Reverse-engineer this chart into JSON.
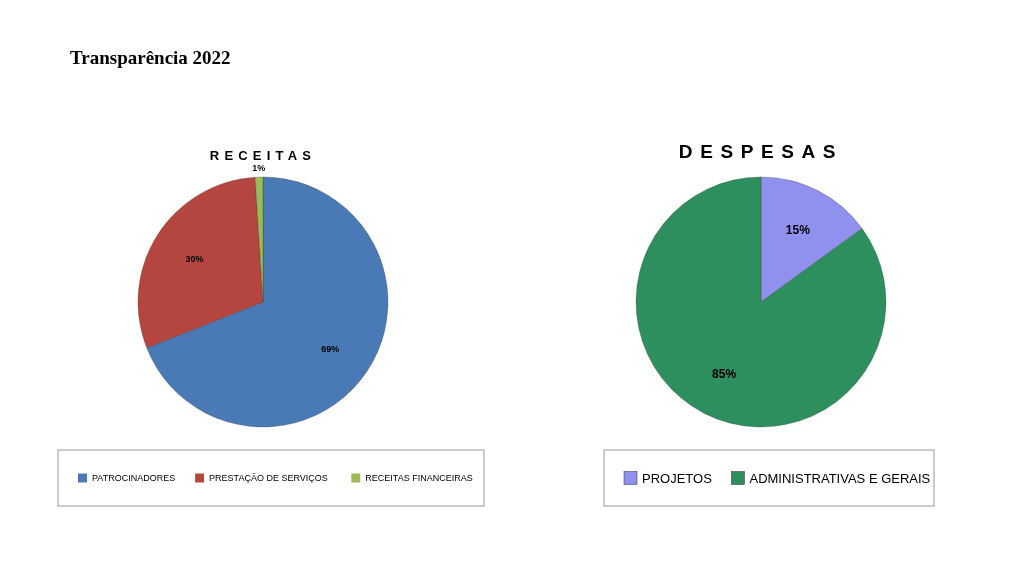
{
  "chart_data": [
    {
      "type": "pie",
      "title": "RECEITAS",
      "annotations": [
        "Transparência 2022"
      ],
      "categories": [
        "PATROCINADORES",
        "PRESTAÇÃO DE SERVIÇOS",
        "RECEITAS FINANCEIRAS"
      ],
      "values": [
        69,
        30,
        1
      ],
      "value_labels": [
        "69%",
        "30%",
        "1%"
      ],
      "colors": [
        "#4a7ab5",
        "#b5453f",
        "#9bbb59"
      ],
      "legend": "bottom"
    },
    {
      "type": "pie",
      "title": "DESPESAS",
      "categories": [
        "PROJETOS",
        "ADMINISTRATIVAS E GERAIS"
      ],
      "values": [
        15,
        85
      ],
      "value_labels": [
        "15%",
        "85%"
      ],
      "colors": [
        "#9090ee",
        "#2e8f5e"
      ],
      "legend": "bottom"
    }
  ]
}
